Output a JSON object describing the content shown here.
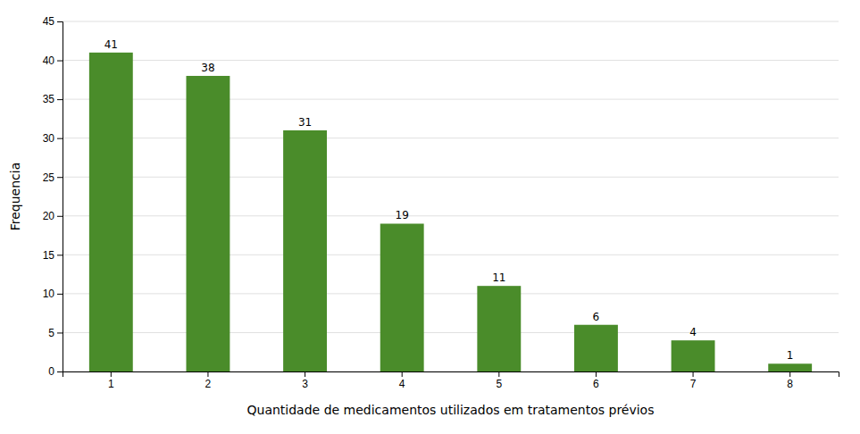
{
  "chart_data": {
    "type": "bar",
    "categories": [
      1,
      2,
      3,
      4,
      5,
      6,
      7,
      8
    ],
    "values": [
      41,
      38,
      31,
      19,
      11,
      6,
      4,
      1
    ],
    "color": "#4a8c2a",
    "xlabel": "Quantidade de medicamentos utilizados em tratamentos prévios",
    "ylabel": "Frequencia",
    "ylim": [
      0,
      45
    ],
    "yticks": [
      0,
      5,
      10,
      15,
      20,
      25,
      30,
      35,
      40,
      45
    ],
    "grid": true,
    "data_labels": true
  }
}
